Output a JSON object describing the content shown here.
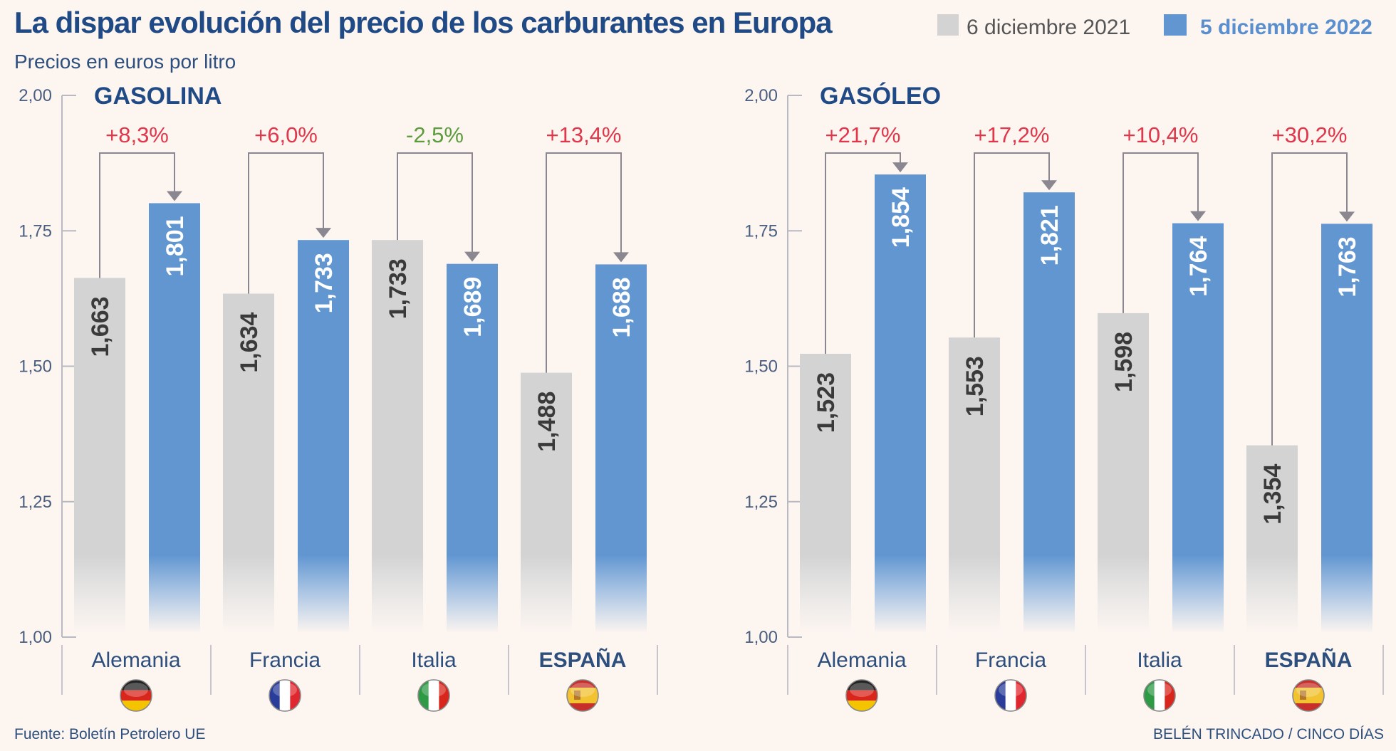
{
  "colors": {
    "grey": "#d3d3d3",
    "blue": "#6296d1",
    "up": "#e0374a",
    "down": "#5c9c3c",
    "text": "#1f4a86"
  },
  "chart_data": [
    {
      "type": "bar",
      "title": "GASOLINA",
      "ylim": [
        1.0,
        2.0
      ],
      "yticks": [
        "1,00",
        "1,25",
        "1,50",
        "1,75",
        "2,00"
      ],
      "categories": [
        "Alemania",
        "Francia",
        "Italia",
        "ESPAÑA"
      ],
      "series": [
        {
          "name": "6 diciembre 2021",
          "values": [
            1.663,
            1.634,
            1.733,
            1.488
          ],
          "labels": [
            "1,663",
            "1,634",
            "1,733",
            "1,488"
          ]
        },
        {
          "name": "5 diciembre 2022",
          "values": [
            1.801,
            1.733,
            1.689,
            1.688
          ],
          "labels": [
            "1,801",
            "1,733",
            "1,689",
            "1,688"
          ]
        }
      ],
      "changes": [
        "+8,3%",
        "+6,0%",
        "-2,5%",
        "+13,4%"
      ],
      "flags": [
        "germany",
        "france",
        "italy",
        "spain"
      ]
    },
    {
      "type": "bar",
      "title": "GASÓLEO",
      "ylim": [
        1.0,
        2.0
      ],
      "yticks": [
        "1,00",
        "1,25",
        "1,50",
        "1,75",
        "2,00"
      ],
      "categories": [
        "Alemania",
        "Francia",
        "Italia",
        "ESPAÑA"
      ],
      "series": [
        {
          "name": "6 diciembre 2021",
          "values": [
            1.523,
            1.553,
            1.598,
            1.354
          ],
          "labels": [
            "1,523",
            "1,553",
            "1,598",
            "1,354"
          ]
        },
        {
          "name": "5 diciembre 2022",
          "values": [
            1.854,
            1.821,
            1.764,
            1.763
          ],
          "labels": [
            "1,854",
            "1,821",
            "1,764",
            "1,763"
          ]
        }
      ],
      "changes": [
        "+21,7%",
        "+17,2%",
        "+10,4%",
        "+30,2%"
      ],
      "flags": [
        "germany",
        "france",
        "italy",
        "spain"
      ]
    }
  ],
  "header": {
    "title": "La dispar evolución del precio de los carburantes en Europa",
    "subtitle": "Precios en euros por litro"
  },
  "legend": [
    "6 diciembre 2021",
    "5 diciembre 2022"
  ],
  "footer": {
    "source": "Fuente: Boletín Petrolero UE",
    "credit": "BELÉN TRINCADO / CINCO DÍAS"
  }
}
